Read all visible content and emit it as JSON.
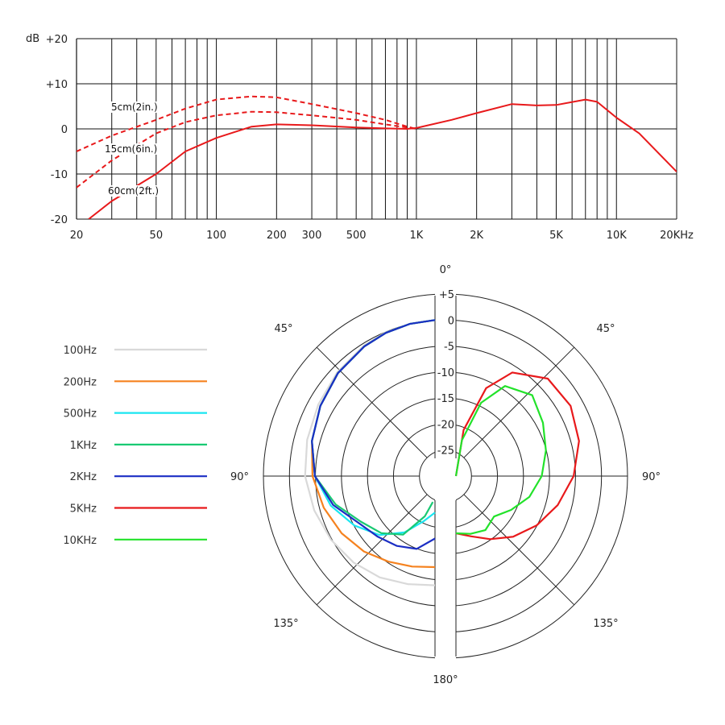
{
  "chart_data": [
    {
      "type": "line",
      "ylabel": "dB",
      "xscale": "log",
      "xlim": [
        20,
        20000
      ],
      "ylim": [
        -20,
        20
      ],
      "grid": true,
      "x_tick_labels": [
        "20",
        "50",
        "100",
        "200",
        "300",
        "500",
        "1K",
        "2K",
        "5K",
        "10K",
        "20KHz"
      ],
      "x_tick_values": [
        20,
        50,
        100,
        200,
        300,
        500,
        1000,
        2000,
        5000,
        10000,
        20000
      ],
      "y_tick_labels": [
        "+20",
        "+10",
        "0",
        "-10",
        "-20"
      ],
      "y_tick_values": [
        20,
        10,
        0,
        -10,
        -20
      ],
      "colors": {
        "curve": "#e8191b",
        "grid": "#111111"
      },
      "series": [
        {
          "name": "5cm(2in.)",
          "style": "dashed",
          "x": [
            20,
            30,
            50,
            70,
            100,
            150,
            200,
            300,
            500,
            700,
            900,
            1000
          ],
          "y": [
            -5,
            -1.5,
            2,
            4.5,
            6.5,
            7.2,
            7,
            5.5,
            3.5,
            2,
            0.5,
            0
          ]
        },
        {
          "name": "15cm(6in.)",
          "style": "dashed",
          "x": [
            20,
            30,
            50,
            70,
            100,
            150,
            200,
            300,
            500,
            700,
            900,
            1000
          ],
          "y": [
            -13,
            -7,
            -1,
            1.5,
            3,
            3.8,
            3.7,
            3,
            2,
            1,
            0.3,
            0
          ]
        },
        {
          "name": "60cm(2ft.)",
          "style": "solid",
          "x": [
            23,
            30,
            50,
            70,
            100,
            150,
            200,
            300,
            500,
            700,
            900,
            1000,
            1500,
            2000,
            3000,
            4000,
            5000,
            7000,
            8000,
            10000,
            13000,
            20000
          ],
          "y": [
            -20,
            -16,
            -10,
            -5,
            -2,
            0.5,
            1,
            0.8,
            0.3,
            0.1,
            0,
            0.2,
            2,
            3.5,
            5.5,
            5.2,
            5.3,
            6.5,
            6,
            2.5,
            -1,
            -9.5
          ]
        }
      ]
    },
    {
      "type": "polar",
      "r_tick_labels": [
        "+5",
        "0",
        "-5",
        "-10",
        "-15",
        "-20",
        "-25"
      ],
      "r_tick_values": [
        5,
        0,
        -5,
        -10,
        -15,
        -20,
        -25
      ],
      "rlim": [
        -30,
        5
      ],
      "angle_labels": [
        "0°",
        "45°",
        "45°",
        "90°",
        "90°",
        "135°",
        "135°",
        "180°"
      ],
      "legend_position": "left",
      "left_half": [
        {
          "name": "100Hz",
          "color": "#d9d9d9",
          "angles": [
            0,
            10,
            20,
            30,
            45,
            60,
            75,
            90,
            105,
            120,
            135,
            150,
            165,
            180
          ],
          "levels": [
            0,
            -0.3,
            -0.6,
            -1,
            -1.8,
            -2.5,
            -3,
            -3.5,
            -4.5,
            -5.5,
            -6.5,
            -7.5,
            -8.5,
            -9
          ]
        },
        {
          "name": "200Hz",
          "color": "#f5821f",
          "angles": [
            0,
            10,
            20,
            30,
            45,
            60,
            75,
            90,
            105,
            120,
            135,
            150,
            165,
            180
          ],
          "levels": [
            0,
            -0.3,
            -0.7,
            -1.2,
            -2,
            -3,
            -4,
            -5,
            -6.5,
            -8,
            -9.5,
            -11,
            -12,
            -12.5
          ]
        },
        {
          "name": "500Hz",
          "color": "#1ae6f0",
          "angles": [
            0,
            10,
            20,
            30,
            45,
            60,
            75,
            90,
            105,
            120,
            135,
            150,
            165,
            180
          ],
          "levels": [
            0,
            -0.3,
            -0.7,
            -1.2,
            -2,
            -3,
            -4,
            -5.5,
            -8,
            -11,
            -14,
            -17.5,
            -21,
            -23
          ]
        },
        {
          "name": "1KHz",
          "color": "#19c973",
          "angles": [
            0,
            10,
            20,
            30,
            45,
            60,
            75,
            90,
            105,
            120,
            135,
            150,
            165,
            175
          ],
          "levels": [
            0,
            -0.3,
            -0.7,
            -1.2,
            -2,
            -3,
            -4,
            -5.5,
            -9,
            -12.5,
            -14.5,
            -17,
            -22,
            -25
          ]
        },
        {
          "name": "2KHz",
          "color": "#1b2ec4",
          "angles": [
            0,
            10,
            20,
            30,
            45,
            60,
            75,
            90,
            105,
            120,
            135,
            150,
            165,
            180
          ],
          "levels": [
            0,
            -0.3,
            -0.7,
            -1.2,
            -2,
            -3,
            -4,
            -5.5,
            -8.5,
            -12,
            -13.5,
            -14.5,
            -15.5,
            -18
          ]
        }
      ],
      "right_half": [
        {
          "name": "5KHz",
          "color": "#e8191b",
          "angles": [
            0,
            10,
            20,
            30,
            45,
            60,
            75,
            90,
            105,
            120,
            135,
            150,
            165,
            180
          ],
          "levels": [
            -30,
            -21,
            -12,
            -7,
            -3.5,
            -3,
            -4,
            -6,
            -8.5,
            -11,
            -13.5,
            -16,
            -18,
            -19
          ]
        },
        {
          "name": "10KHz",
          "color": "#22e22a",
          "angles": [
            0,
            10,
            20,
            30,
            45,
            60,
            75,
            90,
            105,
            120,
            135,
            150,
            165,
            180
          ],
          "levels": [
            -30,
            -23,
            -15,
            -10,
            -8,
            -9.5,
            -11,
            -12.5,
            -14.5,
            -17,
            -19,
            -18,
            -18.5,
            -19
          ]
        }
      ],
      "legend": [
        {
          "name": "100Hz",
          "color": "#d9d9d9"
        },
        {
          "name": "200Hz",
          "color": "#f5821f"
        },
        {
          "name": "500Hz",
          "color": "#1ae6f0"
        },
        {
          "name": "1KHz",
          "color": "#19c973"
        },
        {
          "name": "2KHz",
          "color": "#1b2ec4"
        },
        {
          "name": "5KHz",
          "color": "#e8191b"
        },
        {
          "name": "10KHz",
          "color": "#22e22a"
        }
      ]
    }
  ]
}
